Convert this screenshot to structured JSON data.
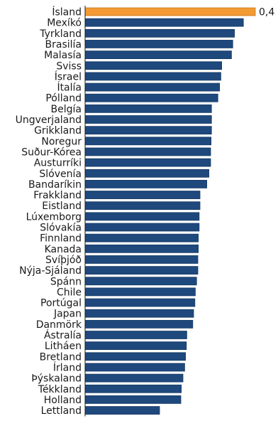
{
  "chart_data": {
    "type": "bar",
    "orientation": "horizontal",
    "categories": [
      "Ísland",
      "Mexíkó",
      "Tyrkland",
      "Brasilía",
      "Malasía",
      "Sviss",
      "Ísrael",
      "Ítalía",
      "Pólland",
      "Belgía",
      "Ungverjaland",
      "Grikkland",
      "Noregur",
      "Suður-Kórea",
      "Austurríki",
      "Slóvenía",
      "Bandaríkin",
      "Frakkland",
      "Eistland",
      "Lúxemborg",
      "Slóvakía",
      "Finnland",
      "Kanada",
      "Svíþjóð",
      "Nýja-Sjáland",
      "Spánn",
      "Chile",
      "Portúgal",
      "Japan",
      "Danmörk",
      "Ástralía",
      "Litháen",
      "Bretland",
      "Írland",
      "Þýskaland",
      "Tékkland",
      "Holland",
      "Lettland"
    ],
    "values": [
      0.4,
      0.372,
      0.351,
      0.347,
      0.344,
      0.321,
      0.319,
      0.316,
      0.312,
      0.297,
      0.297,
      0.297,
      0.296,
      0.295,
      0.295,
      0.291,
      0.286,
      0.27,
      0.27,
      0.268,
      0.268,
      0.266,
      0.266,
      0.265,
      0.265,
      0.262,
      0.259,
      0.258,
      0.255,
      0.253,
      0.239,
      0.238,
      0.236,
      0.234,
      0.23,
      0.226,
      0.225,
      0.175
    ],
    "value_labels": [
      "0,4"
    ],
    "highlight_index": 0,
    "colors": {
      "highlight": "#F39A33",
      "bar": "#1F497D",
      "bar_dark": "#163A64",
      "text": "#1A1A1A"
    },
    "xlim": [
      0,
      0.4
    ],
    "grid": false,
    "legend": "none",
    "title": "",
    "xlabel": "",
    "ylabel": ""
  }
}
